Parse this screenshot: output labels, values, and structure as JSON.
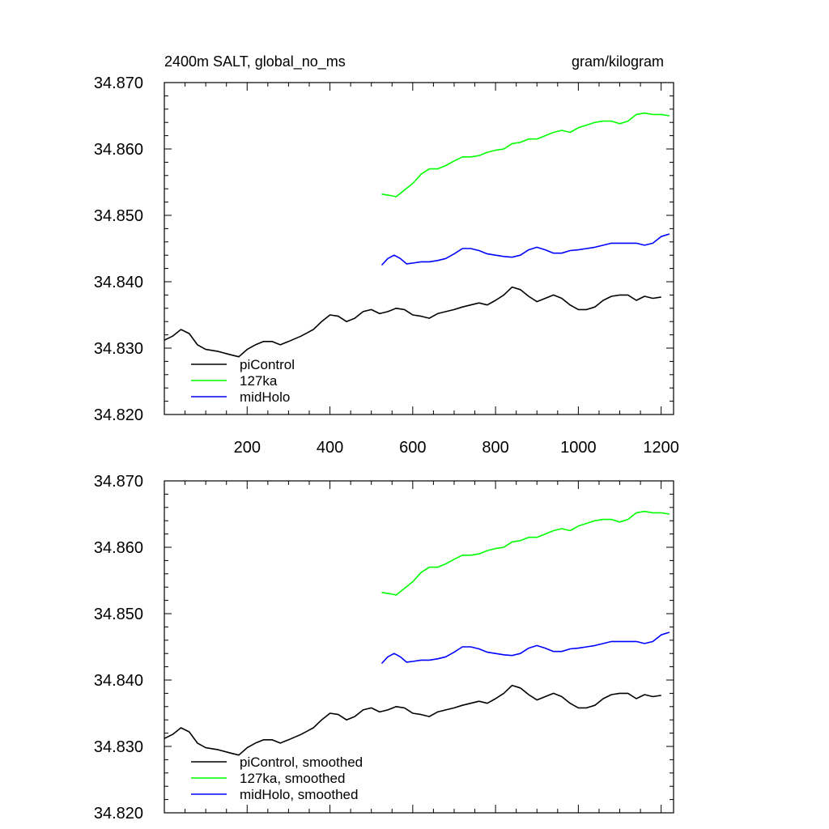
{
  "chart_data": [
    {
      "type": "line",
      "title": "2400m SALT, global_no_ms",
      "units": "gram/kilogram",
      "xlim": [
        0,
        1230
      ],
      "ylim": [
        34.82,
        34.87
      ],
      "x_tick_labels": [
        "200",
        "400",
        "600",
        "800",
        "1000",
        "1200"
      ],
      "y_tick_labels": [
        "34.820",
        "34.830",
        "34.840",
        "34.850",
        "34.860",
        "34.870"
      ],
      "series": [
        {
          "name": "piControl",
          "color": "#000000",
          "x": [
            0,
            20,
            40,
            60,
            80,
            100,
            130,
            160,
            180,
            200,
            220,
            240,
            260,
            280,
            300,
            330,
            360,
            380,
            400,
            420,
            440,
            460,
            480,
            500,
            520,
            540,
            560,
            580,
            600,
            620,
            640,
            660,
            680,
            700,
            720,
            740,
            760,
            780,
            800,
            820,
            840,
            860,
            880,
            900,
            920,
            940,
            960,
            980,
            1000,
            1020,
            1040,
            1060,
            1080,
            1100,
            1120,
            1140,
            1160,
            1180,
            1200
          ],
          "y": [
            34.8312,
            34.8318,
            34.8328,
            34.8322,
            34.8305,
            34.8298,
            34.8295,
            34.829,
            34.8287,
            34.8298,
            34.8305,
            34.831,
            34.831,
            34.8305,
            34.831,
            34.8318,
            34.8328,
            34.834,
            34.835,
            34.8348,
            34.834,
            34.8345,
            34.8355,
            34.8358,
            34.8352,
            34.8355,
            34.836,
            34.8358,
            34.835,
            34.8348,
            34.8345,
            34.8352,
            34.8355,
            34.8358,
            34.8362,
            34.8365,
            34.8368,
            34.8365,
            34.8372,
            34.838,
            34.8392,
            34.8388,
            34.8378,
            34.837,
            34.8375,
            34.838,
            34.8375,
            34.8365,
            34.8358,
            34.8358,
            34.8362,
            34.8372,
            34.8378,
            34.838,
            34.838,
            34.8372,
            34.8378,
            34.8375,
            34.8377
          ]
        },
        {
          "name": "127ka",
          "color": "#00ff00",
          "x": [
            525,
            545,
            560,
            580,
            600,
            620,
            640,
            660,
            680,
            700,
            720,
            740,
            760,
            780,
            800,
            820,
            840,
            860,
            880,
            900,
            920,
            940,
            960,
            980,
            1000,
            1020,
            1040,
            1060,
            1080,
            1100,
            1120,
            1140,
            1160,
            1180,
            1200,
            1220
          ],
          "y": [
            34.8532,
            34.853,
            34.8528,
            34.8538,
            34.8548,
            34.8562,
            34.857,
            34.857,
            34.8575,
            34.8582,
            34.8588,
            34.8588,
            34.859,
            34.8595,
            34.8598,
            34.86,
            34.8608,
            34.861,
            34.8615,
            34.8615,
            34.862,
            34.8625,
            34.8628,
            34.8625,
            34.8632,
            34.8636,
            34.864,
            34.8642,
            34.8642,
            34.8638,
            34.8642,
            34.8652,
            34.8654,
            34.8652,
            34.8652,
            34.865
          ]
        },
        {
          "name": "midHolo",
          "color": "#0000ff",
          "x": [
            525,
            540,
            555,
            570,
            585,
            600,
            620,
            640,
            660,
            680,
            700,
            720,
            740,
            760,
            780,
            800,
            820,
            840,
            860,
            880,
            900,
            920,
            940,
            960,
            980,
            1000,
            1020,
            1040,
            1060,
            1080,
            1100,
            1120,
            1140,
            1160,
            1180,
            1200,
            1220
          ],
          "y": [
            34.8425,
            34.8435,
            34.844,
            34.8435,
            34.8427,
            34.8428,
            34.843,
            34.843,
            34.8432,
            34.8435,
            34.8442,
            34.845,
            34.845,
            34.8447,
            34.8442,
            34.844,
            34.8438,
            34.8437,
            34.844,
            34.8448,
            34.8452,
            34.8448,
            34.8443,
            34.8443,
            34.8447,
            34.8448,
            34.845,
            34.8452,
            34.8455,
            34.8458,
            34.8458,
            34.8458,
            34.8458,
            34.8455,
            34.8458,
            34.8468,
            34.8472
          ]
        }
      ]
    },
    {
      "type": "line",
      "xlim": [
        0,
        1230
      ],
      "ylim": [
        34.82,
        34.87
      ],
      "y_tick_labels": [
        "34.820",
        "34.830",
        "34.840",
        "34.850",
        "34.860",
        "34.870"
      ],
      "series": [
        {
          "name": "piControl, smoothed",
          "color": "#000000",
          "x": [
            0,
            20,
            40,
            60,
            80,
            100,
            130,
            160,
            180,
            200,
            220,
            240,
            260,
            280,
            300,
            330,
            360,
            380,
            400,
            420,
            440,
            460,
            480,
            500,
            520,
            540,
            560,
            580,
            600,
            620,
            640,
            660,
            680,
            700,
            720,
            740,
            760,
            780,
            800,
            820,
            840,
            860,
            880,
            900,
            920,
            940,
            960,
            980,
            1000,
            1020,
            1040,
            1060,
            1080,
            1100,
            1120,
            1140,
            1160,
            1180,
            1200
          ],
          "y": [
            34.8312,
            34.8318,
            34.8328,
            34.8322,
            34.8305,
            34.8298,
            34.8295,
            34.829,
            34.8287,
            34.8298,
            34.8305,
            34.831,
            34.831,
            34.8305,
            34.831,
            34.8318,
            34.8328,
            34.834,
            34.835,
            34.8348,
            34.834,
            34.8345,
            34.8355,
            34.8358,
            34.8352,
            34.8355,
            34.836,
            34.8358,
            34.835,
            34.8348,
            34.8345,
            34.8352,
            34.8355,
            34.8358,
            34.8362,
            34.8365,
            34.8368,
            34.8365,
            34.8372,
            34.838,
            34.8392,
            34.8388,
            34.8378,
            34.837,
            34.8375,
            34.838,
            34.8375,
            34.8365,
            34.8358,
            34.8358,
            34.8362,
            34.8372,
            34.8378,
            34.838,
            34.838,
            34.8372,
            34.8378,
            34.8375,
            34.8377
          ]
        },
        {
          "name": "127ka, smoothed",
          "color": "#00ff00",
          "x": [
            525,
            545,
            560,
            580,
            600,
            620,
            640,
            660,
            680,
            700,
            720,
            740,
            760,
            780,
            800,
            820,
            840,
            860,
            880,
            900,
            920,
            940,
            960,
            980,
            1000,
            1020,
            1040,
            1060,
            1080,
            1100,
            1120,
            1140,
            1160,
            1180,
            1200,
            1220
          ],
          "y": [
            34.8532,
            34.853,
            34.8528,
            34.8538,
            34.8548,
            34.8562,
            34.857,
            34.857,
            34.8575,
            34.8582,
            34.8588,
            34.8588,
            34.859,
            34.8595,
            34.8598,
            34.86,
            34.8608,
            34.861,
            34.8615,
            34.8615,
            34.862,
            34.8625,
            34.8628,
            34.8625,
            34.8632,
            34.8636,
            34.864,
            34.8642,
            34.8642,
            34.8638,
            34.8642,
            34.8652,
            34.8654,
            34.8652,
            34.8652,
            34.865
          ]
        },
        {
          "name": "midHolo, smoothed",
          "color": "#0000ff",
          "x": [
            525,
            540,
            555,
            570,
            585,
            600,
            620,
            640,
            660,
            680,
            700,
            720,
            740,
            760,
            780,
            800,
            820,
            840,
            860,
            880,
            900,
            920,
            940,
            960,
            980,
            1000,
            1020,
            1040,
            1060,
            1080,
            1100,
            1120,
            1140,
            1160,
            1180,
            1200,
            1220
          ],
          "y": [
            34.8425,
            34.8435,
            34.844,
            34.8435,
            34.8427,
            34.8428,
            34.843,
            34.843,
            34.8432,
            34.8435,
            34.8442,
            34.845,
            34.845,
            34.8447,
            34.8442,
            34.844,
            34.8438,
            34.8437,
            34.844,
            34.8448,
            34.8452,
            34.8448,
            34.8443,
            34.8443,
            34.8447,
            34.8448,
            34.845,
            34.8452,
            34.8455,
            34.8458,
            34.8458,
            34.8458,
            34.8458,
            34.8455,
            34.8458,
            34.8468,
            34.8472
          ]
        }
      ]
    }
  ]
}
